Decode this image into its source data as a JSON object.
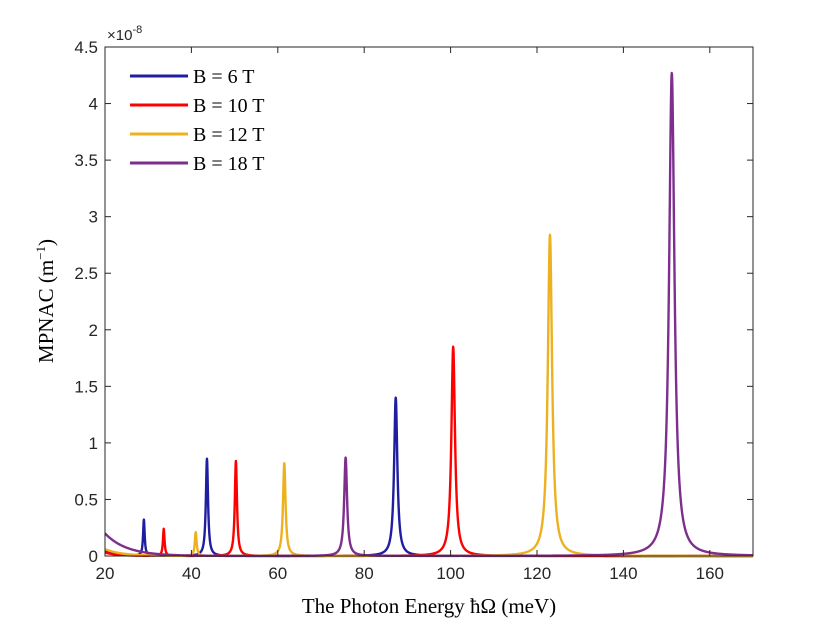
{
  "chart_data": {
    "type": "line",
    "title": "",
    "xlabel": "The Photon Energy ħΩ (meV)",
    "ylabel": "MPNAC (m",
    "ylabel_exp": "−1",
    "ylabel_close": ")",
    "y_exponent_label": "×10",
    "y_exponent_power": "-8",
    "xlim": [
      20,
      170
    ],
    "ylim": [
      0,
      4.5
    ],
    "xticks": [
      20,
      40,
      60,
      80,
      100,
      120,
      140,
      160
    ],
    "xtick_labels": [
      "20",
      "40",
      "60",
      "80",
      "100",
      "120",
      "140",
      "160"
    ],
    "yticks": [
      0,
      0.5,
      1,
      1.5,
      2,
      2.5,
      3,
      3.5,
      4,
      4.5
    ],
    "ytick_labels": [
      "0",
      "0.5",
      "1",
      "1.5",
      "2",
      "2.5",
      "3",
      "3.5",
      "4",
      "4.5"
    ],
    "grid": false,
    "legend_position": "top-left",
    "series": [
      {
        "name": "B = 6 T",
        "color": "#1f1ea0",
        "baseline": {
          "amp": 0.04,
          "decay": 3
        },
        "peaks": [
          {
            "x": 29.0,
            "height": 0.32,
            "width": 0.22
          },
          {
            "x": 43.6,
            "height": 0.86,
            "width": 0.3
          },
          {
            "x": 87.3,
            "height": 1.4,
            "width": 0.45
          }
        ]
      },
      {
        "name": "B = 10 T",
        "color": "#ff0000",
        "baseline": {
          "amp": 0.03,
          "decay": 3
        },
        "peaks": [
          {
            "x": 33.6,
            "height": 0.24,
            "width": 0.22
          },
          {
            "x": 50.3,
            "height": 0.84,
            "width": 0.3
          },
          {
            "x": 100.6,
            "height": 1.85,
            "width": 0.5
          }
        ]
      },
      {
        "name": "B = 12 T",
        "color": "#edb120",
        "baseline": {
          "amp": 0.06,
          "decay": 4
        },
        "peaks": [
          {
            "x": 41.0,
            "height": 0.21,
            "width": 0.25
          },
          {
            "x": 61.5,
            "height": 0.82,
            "width": 0.35
          },
          {
            "x": 123.0,
            "height": 2.84,
            "width": 0.6
          }
        ]
      },
      {
        "name": "B = 18 T",
        "color": "#7e2f8e",
        "baseline": {
          "amp": 0.2,
          "decay": 5
        },
        "peaks": [
          {
            "x": 75.7,
            "height": 0.87,
            "width": 0.4
          },
          {
            "x": 151.2,
            "height": 4.27,
            "width": 0.75
          }
        ]
      }
    ]
  }
}
